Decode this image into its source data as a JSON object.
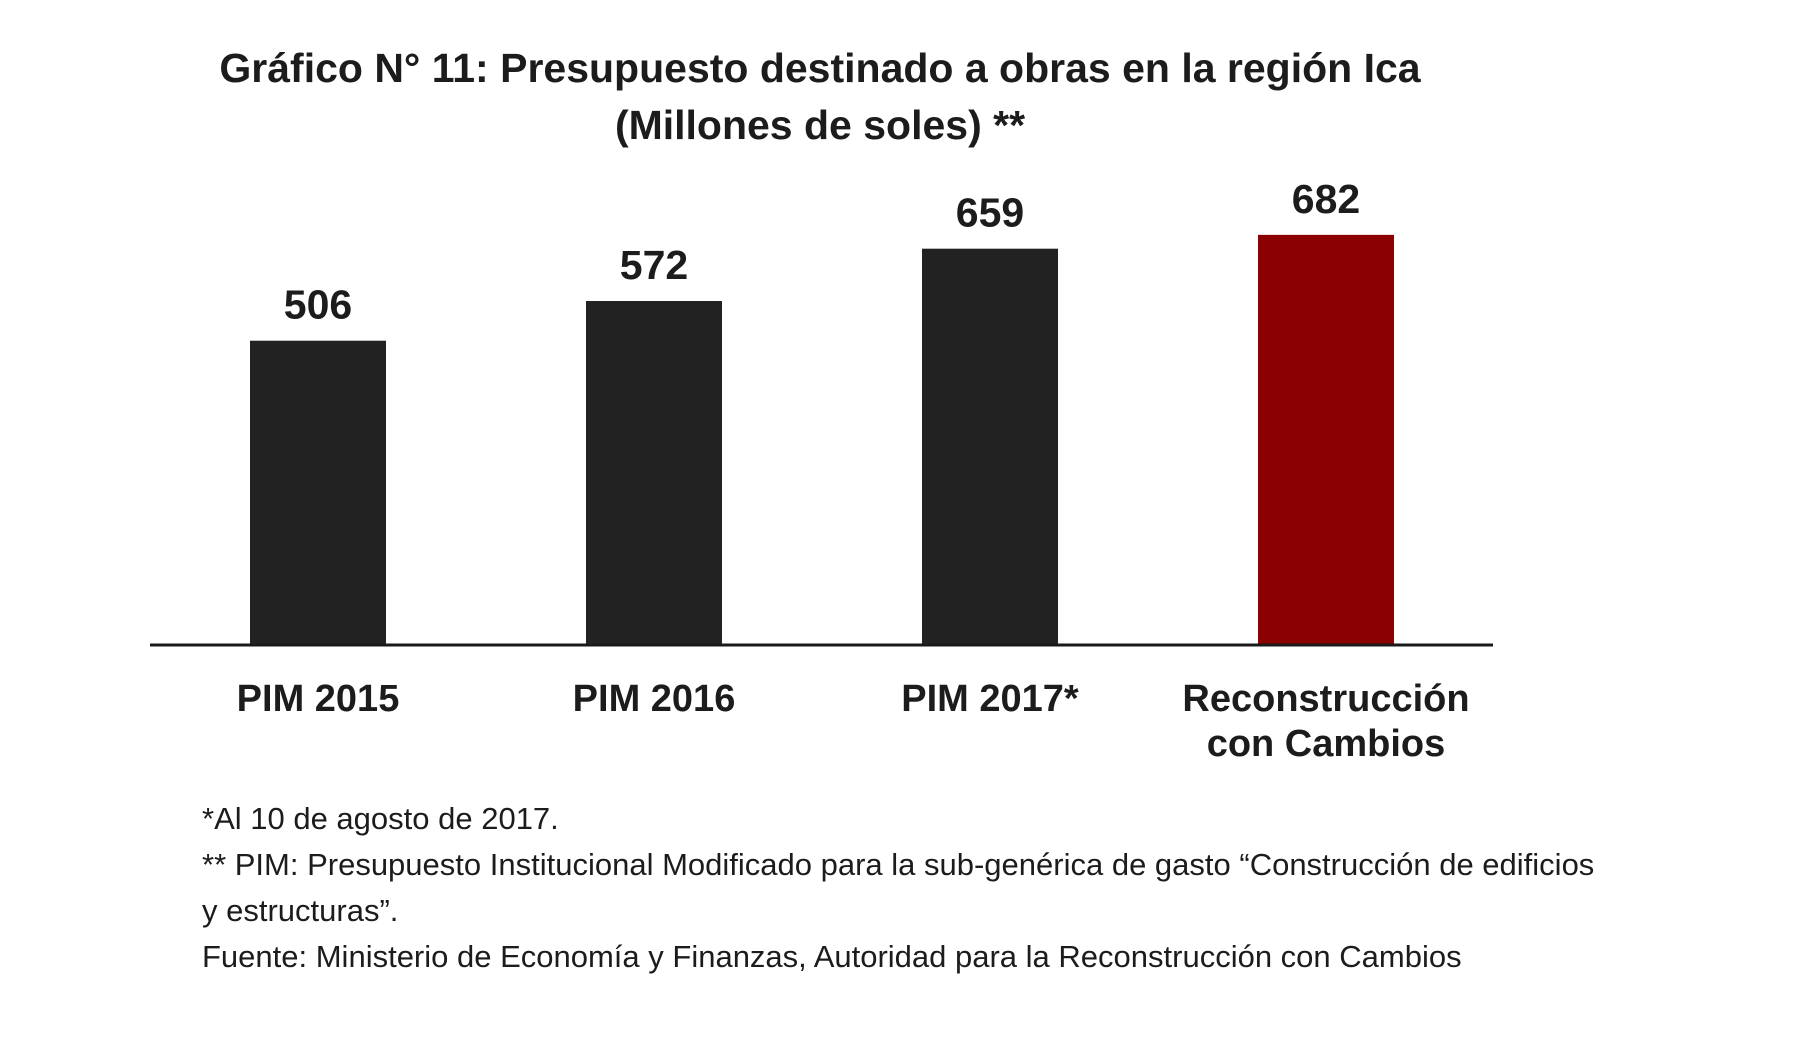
{
  "chart_data": {
    "type": "bar",
    "title": "Gráfico N° 11: Presupuesto destinado a obras en la región Ica",
    "subtitle": "(Millones de soles) **",
    "categories": [
      [
        "PIM 2015"
      ],
      [
        "PIM 2016"
      ],
      [
        "PIM 2017*"
      ],
      [
        "Reconstrucción",
        "con Cambios"
      ]
    ],
    "values": [
      506,
      572,
      659,
      682
    ],
    "value_labels": [
      "506",
      "572",
      "659",
      "682"
    ],
    "bar_colors": [
      "#222222",
      "#222222",
      "#222222",
      "#8b0000"
    ],
    "ylim": [
      0,
      720
    ],
    "xlabel": "",
    "ylabel": "",
    "grid": false,
    "legend": "none"
  },
  "notes": [
    "*Al 10 de agosto de 2017.",
    "** PIM: Presupuesto Institucional Modificado para la sub-genérica de gasto “Construcción de edificios",
    "y estructuras”.",
    "Fuente: Ministerio de Economía y Finanzas, Autoridad para la Reconstrucción con Cambios"
  ],
  "colors": {
    "bar_default": "#222222",
    "bar_highlight": "#8b0000",
    "axis": "#1a1a1a",
    "text": "#1c1c1c"
  }
}
